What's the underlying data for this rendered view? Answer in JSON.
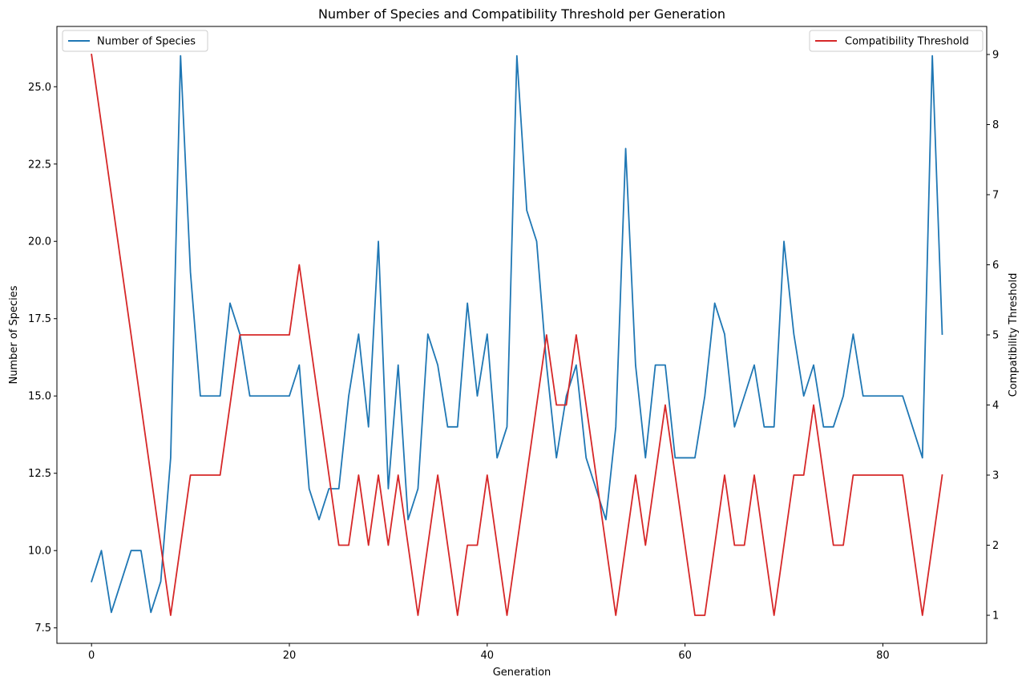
{
  "chart_data": {
    "type": "line",
    "title": "Number of Species and Compatibility Threshold per Generation",
    "xlabel": "Generation",
    "ylabel_left": "Number of Species",
    "ylabel_right": "Compatibility Threshold",
    "xlim": [
      -3.5,
      90.5
    ],
    "ylim_left": [
      7.0,
      26.95
    ],
    "ylim_right": [
      0.6,
      9.4
    ],
    "xticks": [
      0,
      20,
      40,
      60,
      80
    ],
    "xtick_labels": [
      "0",
      "20",
      "40",
      "60",
      "80"
    ],
    "yticks_left": [
      7.5,
      10.0,
      12.5,
      15.0,
      17.5,
      20.0,
      22.5,
      25.0
    ],
    "ytick_labels_left": [
      "7.5",
      "10.0",
      "12.5",
      "15.0",
      "17.5",
      "20.0",
      "22.5",
      "25.0"
    ],
    "yticks_right": [
      1,
      2,
      3,
      4,
      5,
      6,
      7,
      8,
      9
    ],
    "ytick_labels_right": [
      "1",
      "2",
      "3",
      "4",
      "5",
      "6",
      "7",
      "8",
      "9"
    ],
    "grid": false,
    "series": [
      {
        "name": "Number of Species",
        "axis": "left",
        "color": "#1f77b4",
        "legend_position": "upper left",
        "values": [
          9,
          10,
          8,
          9,
          10,
          10,
          8,
          9,
          13,
          26,
          19,
          15,
          15,
          15,
          18,
          17,
          15,
          15,
          15,
          15,
          15,
          16,
          12,
          11,
          12,
          12,
          15,
          17,
          14,
          20,
          12,
          16,
          11,
          12,
          17,
          16,
          14,
          14,
          18,
          15,
          17,
          13,
          14,
          26,
          21,
          20,
          16,
          13,
          15,
          16,
          13,
          12,
          11,
          14,
          23,
          16,
          13,
          16,
          16,
          13,
          13,
          13,
          15,
          18,
          17,
          14,
          15,
          16,
          14,
          14,
          20,
          17,
          15,
          16,
          14,
          14,
          15,
          17,
          15,
          15,
          15,
          15,
          15,
          14,
          13,
          26,
          17
        ]
      },
      {
        "name": "Compatibility Threshold",
        "axis": "right",
        "color": "#d62728",
        "legend_position": "upper right",
        "values": [
          9,
          8,
          7,
          6,
          5,
          4,
          3,
          2,
          1,
          2,
          3,
          3,
          3,
          3,
          4,
          5,
          5,
          5,
          5,
          5,
          5,
          6,
          5,
          4,
          3,
          2,
          2,
          3,
          2,
          3,
          2,
          3,
          2,
          1,
          2,
          3,
          2,
          1,
          2,
          2,
          3,
          2,
          1,
          2,
          3,
          4,
          5,
          4,
          4,
          5,
          4,
          3,
          2,
          1,
          2,
          3,
          2,
          3,
          4,
          3,
          2,
          1,
          1,
          2,
          3,
          2,
          2,
          3,
          2,
          1,
          2,
          3,
          3,
          4,
          3,
          2,
          2,
          3,
          3,
          3,
          3,
          3,
          3,
          2,
          1,
          2,
          3
        ]
      }
    ]
  }
}
